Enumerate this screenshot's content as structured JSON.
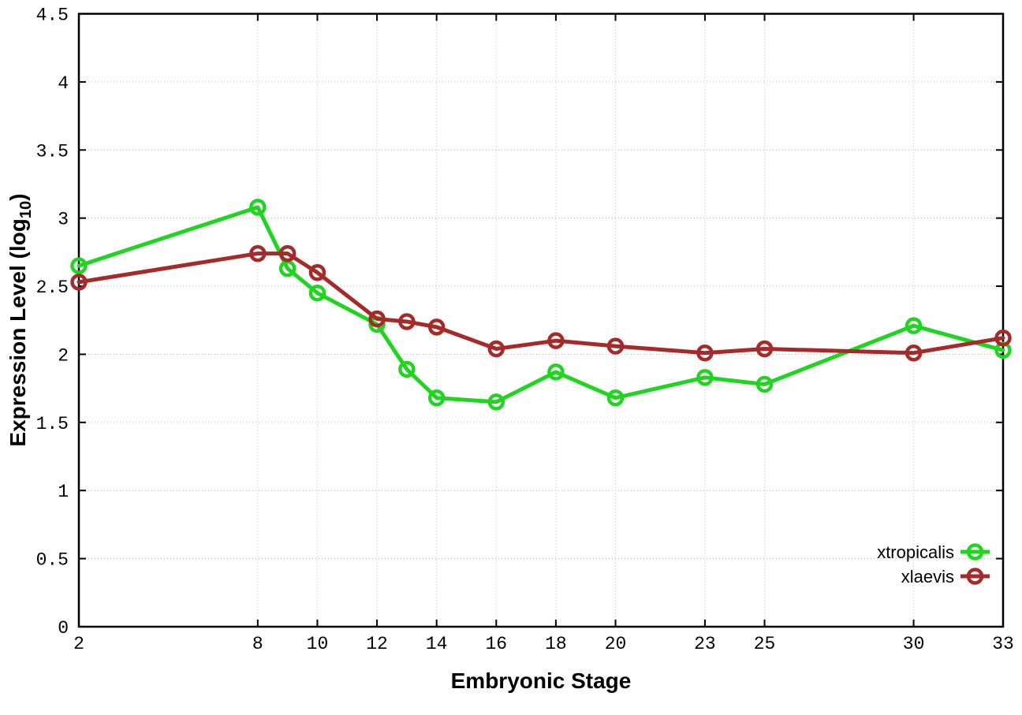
{
  "figure": {
    "title": "",
    "xlabel": "Embryonic Stage",
    "ylabel_prefix": "Expression Level (log",
    "ylabel_sub": "10",
    "ylabel_suffix": ")"
  },
  "chart_data": {
    "type": "line",
    "title": "",
    "xlabel": "Embryonic Stage",
    "ylabel": "Expression Level (log10)",
    "x": [
      2,
      8,
      9,
      10,
      12,
      13,
      14,
      16,
      18,
      20,
      23,
      25,
      30,
      33
    ],
    "series": [
      {
        "name": "xtropicalis",
        "color": "#22d422",
        "marker": "open-circle",
        "values": [
          2.65,
          3.08,
          2.63,
          2.45,
          2.22,
          1.89,
          1.68,
          1.65,
          1.87,
          1.68,
          1.83,
          1.78,
          2.21,
          2.03
        ]
      },
      {
        "name": "xlaevis",
        "color": "#a52a2a",
        "marker": "open-circle",
        "values": [
          2.53,
          2.74,
          2.74,
          2.6,
          2.26,
          2.24,
          2.2,
          2.04,
          2.1,
          2.06,
          2.01,
          2.04,
          2.01,
          2.12
        ]
      }
    ],
    "xlim": [
      2,
      33
    ],
    "ylim": [
      0,
      4.5
    ],
    "x_ticks": [
      2,
      8,
      10,
      12,
      14,
      16,
      18,
      20,
      23,
      25,
      30,
      33
    ],
    "x_tick_labels": [
      "2",
      "8",
      "10",
      "12",
      "14",
      "16",
      "18",
      "20",
      "23",
      "25",
      "30",
      "33"
    ],
    "y_ticks": [
      0,
      0.5,
      1,
      1.5,
      2,
      2.5,
      3,
      3.5,
      4,
      4.5
    ],
    "y_tick_labels": [
      "0",
      "0.5",
      "1",
      "1.5",
      "2",
      "2.5",
      "3",
      "3.5",
      "4",
      "4.5"
    ],
    "grid": true,
    "grid_style": "dotted",
    "legend_position": "inside-bottom-right",
    "legend_entries": [
      "xtropicalis",
      "xlaevis"
    ],
    "axis_color": "#000000",
    "grid_color": "#b8b8b8",
    "background_color": "#ffffff"
  }
}
